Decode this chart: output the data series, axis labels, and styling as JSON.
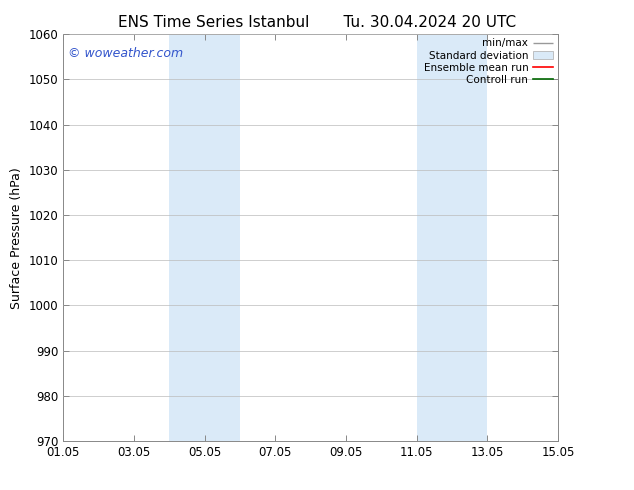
{
  "title_left": "ENS Time Series Istanbul",
  "title_right": "Tu. 30.04.2024 20 UTC",
  "ylabel": "Surface Pressure (hPa)",
  "ylim": [
    970,
    1060
  ],
  "yticks": [
    970,
    980,
    990,
    1000,
    1010,
    1020,
    1030,
    1040,
    1050,
    1060
  ],
  "xlim_start": 0,
  "xlim_end": 14,
  "xtick_labels": [
    "01.05",
    "03.05",
    "05.05",
    "07.05",
    "09.05",
    "11.05",
    "13.05",
    "15.05"
  ],
  "xtick_positions": [
    0,
    2,
    4,
    6,
    8,
    10,
    12,
    14
  ],
  "shaded_bands": [
    {
      "x_start": 3.0,
      "x_end": 5.0,
      "color": "#daeaf8"
    },
    {
      "x_start": 10.0,
      "x_end": 12.0,
      "color": "#daeaf8"
    }
  ],
  "watermark_text": "© woweather.com",
  "watermark_color": "#3355cc",
  "background_color": "#ffffff",
  "grid_color": "#bbbbbb",
  "title_fontsize": 11,
  "tick_fontsize": 8.5,
  "label_fontsize": 9
}
